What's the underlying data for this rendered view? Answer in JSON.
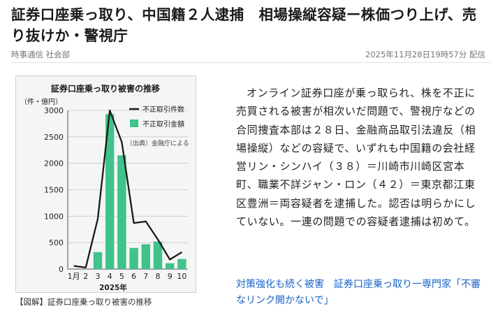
{
  "headline": "証券口座乗っ取り、中国籍２人逮捕　相場操縦容疑ー株価つり上げ、売り抜けか・警視庁",
  "meta": {
    "source": "時事通信 社会部",
    "datetime": "2025年11月28日19時57分 配信"
  },
  "figure": {
    "caption": "【図解】証券口座乗っ取り被害の推移",
    "source_note": "〔出典〕金融庁による"
  },
  "chart_data": {
    "type": "bar",
    "title": "証券口座乗っ取り被害の推移",
    "ylabel": "（件・億円）",
    "xlabel": "2025年",
    "ylim": [
      0,
      3000
    ],
    "yticks": [
      "0",
      "500",
      "1000",
      "1500",
      "2000",
      "2500",
      "3000"
    ],
    "categories": [
      "1月",
      "2",
      "3",
      "4",
      "5",
      "6",
      "7",
      "8",
      "9",
      "10"
    ],
    "series": [
      {
        "name": "不正取引件数",
        "kind": "line",
        "color": "#1a1a1a",
        "values": [
          60,
          30,
          950,
          3000,
          2400,
          870,
          900,
          560,
          180,
          320
        ]
      },
      {
        "name": "不正取引金額",
        "kind": "bar",
        "color": "#3fc38a",
        "values": [
          0,
          0,
          320,
          2930,
          2150,
          400,
          470,
          520,
          110,
          190
        ]
      }
    ],
    "legend": "top-right"
  },
  "article": {
    "body": "オンライン証券口座が乗っ取られ、株を不正に売買される被害が相次いだ問題で、警視庁などの合同捜査本部は２８日、金融商品取引法違反（相場操縦）などの容疑で、いずれも中国籍の会社経営リン・シンハイ（３８）＝川崎市川崎区宮本町、職業不詳ジャン・ロン（４２）＝東京都江東区豊洲＝両容疑者を逮捕した。認否は明らかにしていない。一連の問題での容疑者逮捕は初めて。"
  },
  "related": {
    "link_text": "対策強化も続く被害　証券口座乗っ取り一専門家「不審なリンク開かないで」"
  }
}
